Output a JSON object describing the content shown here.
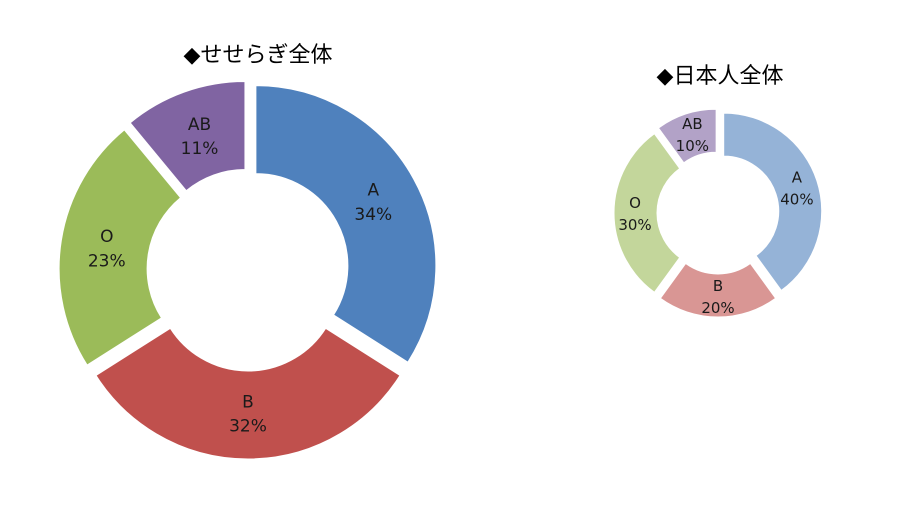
{
  "chart_data": [
    {
      "type": "pie",
      "title": "◆せせらぎ全体",
      "categories": [
        "A",
        "B",
        "O",
        "AB"
      ],
      "values": [
        34,
        32,
        23,
        11
      ],
      "value_labels": [
        "34%",
        "32%",
        "23%",
        "11%"
      ],
      "colors": [
        "#4f81bd",
        "#c0504d",
        "#9bbb59",
        "#8064a2"
      ]
    },
    {
      "type": "pie",
      "title": "◆日本人全体",
      "categories": [
        "A",
        "B",
        "O",
        "AB"
      ],
      "values": [
        40,
        20,
        30,
        10
      ],
      "value_labels": [
        "40%",
        "20%",
        "30%",
        "10%"
      ],
      "colors": [
        "#95b3d7",
        "#d99694",
        "#c3d69b",
        "#b2a2c7"
      ]
    }
  ]
}
